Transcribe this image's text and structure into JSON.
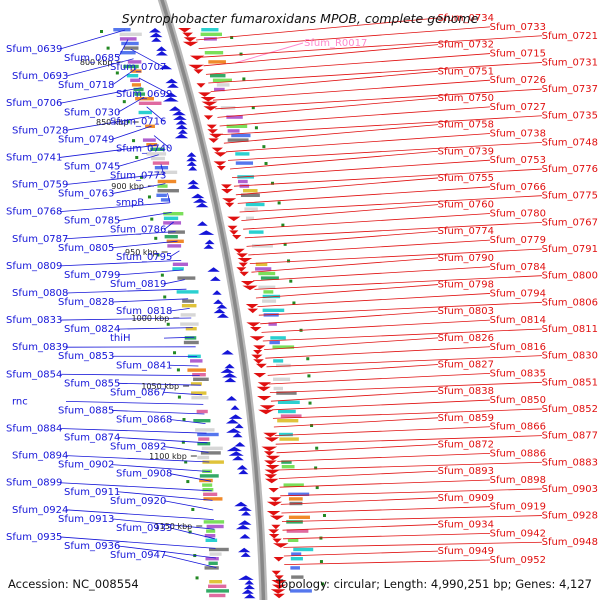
{
  "title": "Syntrophobacter fumaroxidans MPOB, complete genome",
  "footer": {
    "accession": "Accession: NC_008554",
    "summary": "Topology: circular; Length: 4,990,251 bp; Genes: 4,127"
  },
  "colors": {
    "forward_strand": "#e01010",
    "reverse_strand": "#1515d8",
    "rna": "#ff88cc",
    "tick_mark": "#228822",
    "backbone": "#888888"
  },
  "ticks": [
    "800 kbp",
    "850 kbp",
    "900 kbp",
    "950 kbp",
    "1000 kbp",
    "1050 kbp",
    "1100 kbp",
    "1150 kbp"
  ],
  "rna_labels": [
    "Sfum_R0017"
  ],
  "left_labels": [
    "Sfum_0639",
    "Sfum_0685",
    "Sfum_0707",
    "Sfum_0693",
    "Sfum_0718",
    "Sfum_0699",
    "Sfum_0706",
    "Sfum_0730",
    "Sfum_0716",
    "Sfum_0728",
    "Sfum_0749",
    "Sfum_0740",
    "Sfum_0741",
    "Sfum_0745",
    "Sfum_0773",
    "Sfum_0759",
    "Sfum_0763",
    "smpB",
    "Sfum_0768",
    "Sfum_0785",
    "Sfum_0786",
    "Sfum_0787",
    "Sfum_0805",
    "Sfum_0795",
    "Sfum_0809",
    "Sfum_0799",
    "Sfum_0819",
    "Sfum_0808",
    "Sfum_0828",
    "Sfum_0818",
    "Sfum_0833",
    "Sfum_0824",
    "thiH",
    "Sfum_0839",
    "Sfum_0853",
    "Sfum_0841",
    "Sfum_0854",
    "Sfum_0855",
    "Sfum_0867",
    "rnc",
    "Sfum_0885",
    "Sfum_0868",
    "Sfum_0884",
    "Sfum_0874",
    "Sfum_0892",
    "Sfum_0894",
    "Sfum_0902",
    "Sfum_0908",
    "Sfum_0899",
    "Sfum_0911",
    "Sfum_0920",
    "Sfum_0924",
    "Sfum_0913",
    "Sfum_0933",
    "Sfum_0935",
    "Sfum_0936",
    "Sfum_0947"
  ],
  "right_labels": [
    "Sfum_0734",
    "Sfum_0733",
    "Sfum_0721",
    "Sfum_0732",
    "Sfum_0715",
    "Sfum_0731",
    "Sfum_0751",
    "Sfum_0726",
    "Sfum_0737",
    "Sfum_0750",
    "Sfum_0727",
    "Sfum_0735",
    "Sfum_0758",
    "Sfum_0738",
    "Sfum_0748",
    "Sfum_0739",
    "Sfum_0753",
    "Sfum_0776",
    "Sfum_0755",
    "Sfum_0766",
    "Sfum_0775",
    "Sfum_0760",
    "Sfum_0780",
    "Sfum_0767",
    "Sfum_0774",
    "Sfum_0779",
    "Sfum_0791",
    "Sfum_0790",
    "Sfum_0784",
    "Sfum_0800",
    "Sfum_0798",
    "Sfum_0794",
    "Sfum_0806",
    "Sfum_0803",
    "Sfum_0814",
    "Sfum_0811",
    "Sfum_0826",
    "Sfum_0816",
    "Sfum_0830",
    "Sfum_0827",
    "Sfum_0835",
    "Sfum_0851",
    "Sfum_0838",
    "Sfum_0850",
    "Sfum_0852",
    "Sfum_0859",
    "Sfum_0866",
    "Sfum_0877",
    "Sfum_0872",
    "Sfum_0886",
    "Sfum_0883",
    "Sfum_0893",
    "Sfum_0898",
    "Sfum_0903",
    "Sfum_0909",
    "Sfum_0919",
    "Sfum_0928",
    "Sfum_0934",
    "Sfum_0942",
    "Sfum_0948",
    "Sfum_0949",
    "Sfum_0952"
  ]
}
